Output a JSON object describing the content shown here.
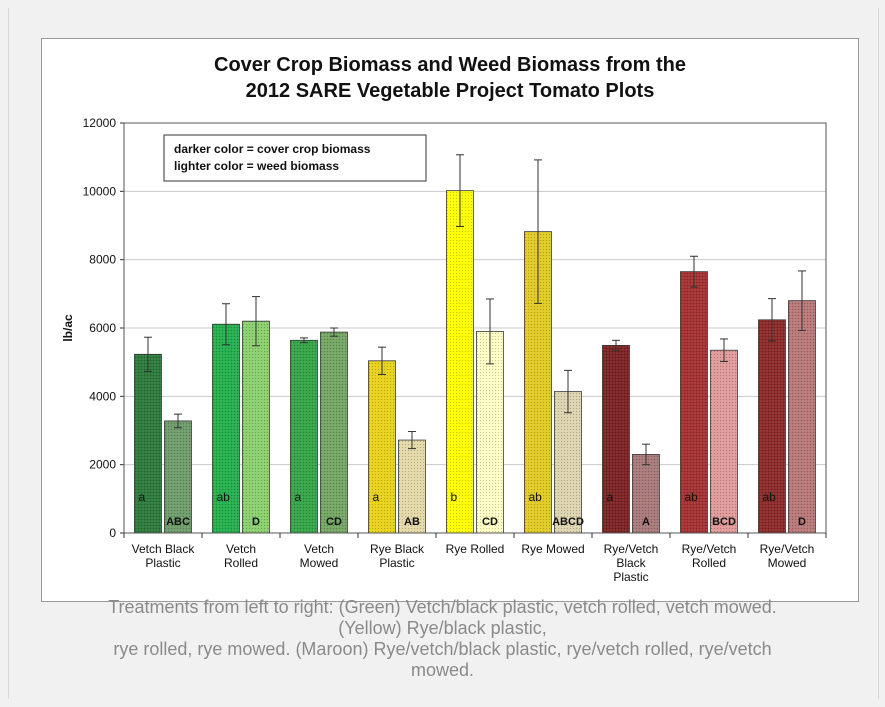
{
  "chart_data": {
    "type": "bar",
    "title_lines": [
      "Cover Crop Biomass and Weed Biomass from the",
      "2012 SARE Vegetable Project Tomato Plots"
    ],
    "ylabel": "lb/ac",
    "xlabel": "",
    "ylim": [
      0,
      12000
    ],
    "yticks": [
      0,
      2000,
      4000,
      6000,
      8000,
      10000,
      12000
    ],
    "grid": true,
    "legend_box_lines": [
      "darker color = cover crop biomass",
      "lighter color = weed biomass"
    ],
    "categories": [
      [
        "Vetch Black",
        "Plastic"
      ],
      [
        "Vetch",
        "Rolled"
      ],
      [
        "Vetch",
        "Mowed"
      ],
      [
        "Rye Black",
        "Plastic"
      ],
      [
        "Rye Rolled"
      ],
      [
        "Rye Mowed"
      ],
      [
        "Rye/Vetch",
        "Black",
        "Plastic"
      ],
      [
        "Rye/Vetch",
        "Rolled"
      ],
      [
        "Rye/Vetch",
        "Mowed"
      ]
    ],
    "series": [
      {
        "role": "cover crop biomass",
        "values": [
          5230,
          6110,
          5640,
          5040,
          10020,
          8820,
          5490,
          7650,
          6240
        ],
        "errors": [
          500,
          600,
          70,
          400,
          1050,
          2100,
          150,
          450,
          620
        ],
        "letters": [
          "a",
          "ab",
          "a",
          "a",
          "b",
          "ab",
          "a",
          "ab",
          "ab"
        ],
        "colors": [
          "#2c7a3c",
          "#24b04d",
          "#35a549",
          "#e8d21a",
          "#ffff00",
          "#e2ca24",
          "#7c2424",
          "#a53232",
          "#8c2a2a"
        ]
      },
      {
        "role": "weed biomass",
        "values": [
          3280,
          6200,
          5880,
          2720,
          5900,
          4140,
          2300,
          5350,
          6800
        ],
        "errors": [
          200,
          720,
          120,
          250,
          950,
          620,
          300,
          330,
          870
        ],
        "letters": [
          "ABC",
          "D",
          "CD",
          "AB",
          "CD",
          "ABCD",
          "A",
          "BCD",
          "D"
        ],
        "colors": [
          "#6e9c6a",
          "#8bd06e",
          "#74a663",
          "#e5d9a7",
          "#ffffc4",
          "#ddd3b0",
          "#a97a7a",
          "#e09a9a",
          "#b87878"
        ]
      }
    ]
  },
  "caption_lines": [
    "Treatments from left to right: (Green) Vetch/black plastic, vetch rolled, vetch mowed.",
    "(Yellow) Rye/black plastic,",
    "rye rolled, rye mowed. (Maroon) Rye/vetch/black plastic, rye/vetch rolled, rye/vetch",
    "mowed."
  ]
}
